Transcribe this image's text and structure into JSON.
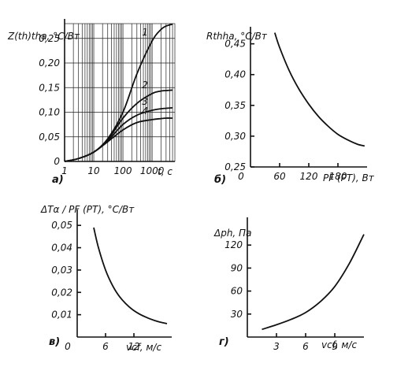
{
  "chart_data": [
    {
      "id": "a",
      "type": "line",
      "panel_label": "а)",
      "ylabel": "Z(th)tha, °C/Вт",
      "xlabel": "t, c",
      "xscale": "log",
      "xlim": [
        1,
        6000
      ],
      "ylim": [
        0,
        0.28
      ],
      "xticks": [
        1,
        10,
        100,
        1000
      ],
      "xtick_labels": [
        "1",
        "10",
        "100",
        "1000"
      ],
      "yticks": [
        0.05,
        0.1,
        0.15,
        0.2,
        0.25
      ],
      "ytick_labels": [
        "0,05",
        "0,10",
        "0,15",
        "0,20",
        "0,25"
      ],
      "y_zero_label": "0",
      "grid": true,
      "series": [
        {
          "name": "1",
          "x": [
            1,
            3,
            10,
            30,
            100,
            300,
            1000,
            2000,
            3000,
            5000
          ],
          "y": [
            0.0,
            0.006,
            0.019,
            0.046,
            0.1,
            0.178,
            0.245,
            0.268,
            0.275,
            0.279
          ]
        },
        {
          "name": "2",
          "x": [
            1,
            3,
            10,
            30,
            100,
            300,
            1000,
            2000,
            3000,
            5000
          ],
          "y": [
            0.0,
            0.006,
            0.019,
            0.044,
            0.088,
            0.118,
            0.138,
            0.143,
            0.144,
            0.145
          ]
        },
        {
          "name": "3",
          "x": [
            1,
            3,
            10,
            30,
            100,
            300,
            1000,
            2000,
            3000,
            5000
          ],
          "y": [
            0.0,
            0.006,
            0.019,
            0.042,
            0.075,
            0.094,
            0.104,
            0.107,
            0.108,
            0.109
          ]
        },
        {
          "name": "4",
          "x": [
            1,
            3,
            10,
            30,
            100,
            300,
            1000,
            2000,
            3000,
            5000
          ],
          "y": [
            0.0,
            0.006,
            0.019,
            0.04,
            0.064,
            0.079,
            0.085,
            0.087,
            0.088,
            0.088
          ]
        }
      ]
    },
    {
      "id": "b",
      "type": "line",
      "panel_label": "б)",
      "ylabel": "Rthha, °C/Вт",
      "xlabel": "PF (PT), Вт",
      "xlim": [
        0,
        240
      ],
      "ylim": [
        0.25,
        0.47
      ],
      "xticks": [
        60,
        120,
        180
      ],
      "xtick_labels": [
        "60",
        "120",
        "180"
      ],
      "x_zero_label": "0",
      "yticks": [
        0.25,
        0.3,
        0.35,
        0.4,
        0.45
      ],
      "ytick_labels": [
        "0,25",
        "0,30",
        "0,35",
        "0,40",
        "0,45"
      ],
      "grid": false,
      "series": [
        {
          "x": [
            50,
            60,
            80,
            100,
            120,
            140,
            160,
            180,
            200,
            220,
            235
          ],
          "y": [
            0.468,
            0.444,
            0.406,
            0.376,
            0.352,
            0.332,
            0.316,
            0.303,
            0.294,
            0.287,
            0.284
          ]
        }
      ]
    },
    {
      "id": "v",
      "type": "line",
      "panel_label": "в)",
      "ylabel": "ΔTα / PF (PT), °C/Вт",
      "xlabel": "vcf, м/с",
      "xlim": [
        0,
        20
      ],
      "ylim": [
        0,
        0.055
      ],
      "xticks": [
        6,
        12
      ],
      "xtick_labels": [
        "6",
        "12"
      ],
      "x_zero_label": "0",
      "yticks": [
        0.01,
        0.02,
        0.03,
        0.04,
        0.05
      ],
      "ytick_labels": [
        "0,01",
        "0,02",
        "0,03",
        "0,04",
        "0,05"
      ],
      "grid": false,
      "series": [
        {
          "x": [
            3.5,
            4.5,
            6,
            7.5,
            9,
            11,
            13,
            15,
            17,
            19
          ],
          "y": [
            0.049,
            0.04,
            0.03,
            0.023,
            0.018,
            0.0135,
            0.0105,
            0.0085,
            0.007,
            0.006
          ]
        }
      ]
    },
    {
      "id": "g",
      "type": "line",
      "panel_label": "г)",
      "ylabel": "Δph, Па",
      "xlabel": "vcf, м/с",
      "xlim": [
        0,
        12
      ],
      "ylim": [
        0,
        150
      ],
      "xticks": [
        3,
        6,
        9
      ],
      "xtick_labels": [
        "3",
        "6",
        "9"
      ],
      "yticks": [
        30,
        60,
        90,
        120
      ],
      "ytick_labels": [
        "30",
        "60",
        "90",
        "120"
      ],
      "grid": false,
      "series": [
        {
          "x": [
            1.5,
            3,
            4.5,
            6,
            7.5,
            9,
            10.5,
            12
          ],
          "y": [
            10,
            16,
            23,
            32,
            46,
            66,
            96,
            134
          ]
        }
      ]
    }
  ]
}
